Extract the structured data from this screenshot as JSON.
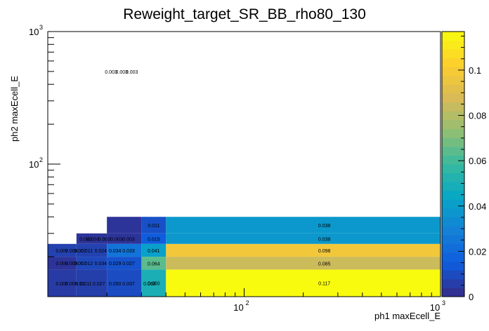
{
  "chart_data": {
    "type": "heatmap",
    "title": "Reweight_target_SR_BB_rho80_130",
    "xlabel": "ph1 maxEcell_E",
    "ylabel": "ph2 maxEcell_E",
    "x_scale": "log",
    "y_scale": "log",
    "xlim": [
      10,
      1000
    ],
    "ylim": [
      10,
      1000
    ],
    "x_edges": [
      10,
      14,
      20,
      30,
      40,
      1000
    ],
    "y_edges": [
      10,
      16,
      20,
      25,
      30,
      40,
      1000
    ],
    "x_tick_labels": [
      "10",
      "10",
      "10"
    ],
    "x_tick_exponents": [
      "",
      "2",
      "3"
    ],
    "y_tick_labels": [
      "10",
      "10"
    ],
    "y_tick_exponents": [
      "2",
      "3"
    ],
    "z_range": [
      0,
      0.117
    ],
    "z_ticks": [
      "0",
      "0.02",
      "0.04",
      "0.06",
      "0.08",
      "0.1"
    ],
    "cells": [
      {
        "x": [
          10,
          14
        ],
        "y": [
          10,
          16
        ],
        "value": 0.005,
        "label": "0.005"
      },
      {
        "x": [
          14,
          20
        ],
        "y": [
          10,
          16
        ],
        "value": 0.006,
        "label": "0.006"
      },
      {
        "x": [
          20,
          30
        ],
        "y": [
          10,
          16
        ],
        "value": 0.01,
        "label": "0.01"
      },
      {
        "x": [
          30,
          40
        ],
        "y": [
          10,
          16
        ],
        "value": 0.05,
        "label": "0.050"
      },
      {
        "x": [
          40,
          1000
        ],
        "y": [
          10,
          16
        ],
        "value": 0.117,
        "label": "0.117"
      },
      {
        "x": [
          10,
          14
        ],
        "y": [
          16,
          20
        ],
        "value": 0.003,
        "label": "0.003"
      },
      {
        "x": [
          14,
          20
        ],
        "y": [
          16,
          20
        ],
        "value": 0.009,
        "label": "0.009"
      },
      {
        "x": [
          20,
          30
        ],
        "y": [
          16,
          20
        ],
        "value": 0.012,
        "label": "0.012"
      },
      {
        "x": [
          30,
          40
        ],
        "y": [
          16,
          20
        ],
        "value": 0.064,
        "label": "0.064"
      },
      {
        "x": [
          40,
          1000
        ],
        "y": [
          16,
          20
        ],
        "value": 0.085,
        "label": "0.085"
      },
      {
        "x": [
          10,
          14
        ],
        "y": [
          20,
          25
        ],
        "value": 0.007,
        "label": "0.007"
      },
      {
        "x": [
          14,
          20
        ],
        "y": [
          20,
          25
        ],
        "value": 0.007,
        "label": "0.007"
      },
      {
        "x": [
          20,
          30
        ],
        "y": [
          20,
          25
        ],
        "value": 0.024,
        "label": "0.024"
      },
      {
        "x": [
          30,
          40
        ],
        "y": [
          20,
          25
        ],
        "value": 0.041,
        "label": "0.041"
      },
      {
        "x": [
          40,
          1000
        ],
        "y": [
          20,
          25
        ],
        "value": 0.098,
        "label": "0.098"
      },
      {
        "x": [
          14,
          20
        ],
        "y": [
          25,
          30
        ],
        "value": 0.003,
        "label": "0.003"
      },
      {
        "x": [
          20,
          30
        ],
        "y": [
          25,
          30
        ],
        "value": 0.003,
        "label": "0.003"
      },
      {
        "x": [
          30,
          40
        ],
        "y": [
          25,
          30
        ],
        "value": 0.015,
        "label": "0.015"
      },
      {
        "x": [
          40,
          1000
        ],
        "y": [
          25,
          30
        ],
        "value": 0.038,
        "label": "0.038"
      },
      {
        "x": [
          20,
          30
        ],
        "y": [
          30,
          40
        ],
        "value": 0.003,
        "label": "0.003"
      },
      {
        "x": [
          30,
          40
        ],
        "y": [
          30,
          40
        ],
        "value": 0.011,
        "label": "0.011"
      },
      {
        "x": [
          40,
          1000
        ],
        "y": [
          30,
          40
        ],
        "value": 0.038,
        "label": "0.038"
      }
    ],
    "label_overrides": [
      {
        "label": "0.005",
        "xv": 11.8,
        "yv": 12.6
      },
      {
        "label": "0.006",
        "xv": 13.2,
        "yv": 12.6
      },
      {
        "label": "0.01",
        "xv": 14.6,
        "yv": 12.6
      },
      {
        "label": "0.011",
        "xv": 15.6,
        "yv": 12.6
      },
      {
        "label": "0.027",
        "xv": 18.2,
        "yv": 12.6
      },
      {
        "label": "0.050",
        "xv": 22.0,
        "yv": 12.6
      },
      {
        "label": "0.037",
        "xv": 25.8,
        "yv": 12.6
      },
      {
        "label": "0.068",
        "xv": 33.0,
        "yv": 12.6
      },
      {
        "label": "0.003",
        "xv": 11.8,
        "yv": 17.9
      },
      {
        "label": "0.009",
        "xv": 13.2,
        "yv": 17.9
      },
      {
        "label": "0.007",
        "xv": 14.6,
        "yv": 17.9
      },
      {
        "label": "0.012",
        "xv": 15.8,
        "yv": 17.9
      },
      {
        "label": "0.034",
        "xv": 18.6,
        "yv": 17.9
      },
      {
        "label": "0.029",
        "xv": 22.0,
        "yv": 17.9
      },
      {
        "label": "0.027",
        "xv": 25.8,
        "yv": 17.9
      },
      {
        "label": "0.007",
        "xv": 11.8,
        "yv": 22.3
      },
      {
        "label": "0.006",
        "xv": 13.2,
        "yv": 22.3
      },
      {
        "label": "0.007",
        "xv": 14.6,
        "yv": 22.3
      },
      {
        "label": "0.011",
        "xv": 15.8,
        "yv": 22.3
      },
      {
        "label": "0.024",
        "xv": 18.6,
        "yv": 22.3
      },
      {
        "label": "0.034",
        "xv": 22.0,
        "yv": 22.3
      },
      {
        "label": "0.033",
        "xv": 25.8,
        "yv": 22.3
      },
      {
        "label": "0.003",
        "xv": 15.6,
        "yv": 27.4
      },
      {
        "label": "0.004",
        "xv": 17.0,
        "yv": 27.4
      },
      {
        "label": "0.003",
        "xv": 19.4,
        "yv": 27.4
      },
      {
        "label": "0.003",
        "xv": 22.4,
        "yv": 27.4
      },
      {
        "label": "0.003",
        "xv": 25.8,
        "yv": 27.4
      },
      {
        "label": "0.003",
        "xv": 21.0,
        "yv": 500
      },
      {
        "label": "0.003",
        "xv": 23.8,
        "yv": 500
      },
      {
        "label": "0.003",
        "xv": 26.8,
        "yv": 500
      }
    ]
  }
}
